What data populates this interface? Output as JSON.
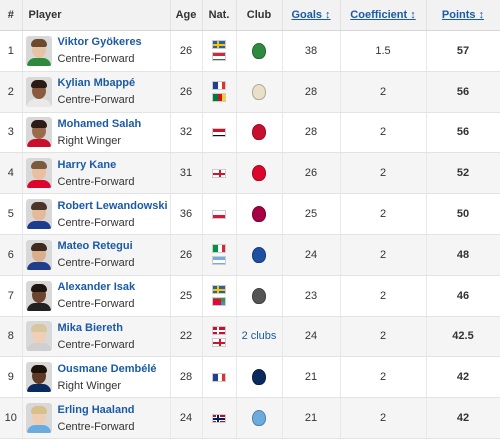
{
  "headers": {
    "rank": "#",
    "player": "Player",
    "age": "Age",
    "nat": "Nat.",
    "club": "Club",
    "goals": "Goals ↕",
    "coefficient": "Coefficient ↕",
    "points": "Points ↕"
  },
  "rows": [
    {
      "rank": "1",
      "name": "Viktor Gyökeres",
      "position": "Centre-Forward",
      "age": "26",
      "flags": [
        "sweden-flag",
        "hungary-flag"
      ],
      "club_icon": "sporting-crest",
      "club_color": "#2e8b3d",
      "clubs_text": "",
      "goals": "38",
      "coefficient": "1.5",
      "points": "57",
      "skin": "#e7c3a6",
      "hair": "#6b4a2e",
      "shirt": "#2e8b3d"
    },
    {
      "rank": "2",
      "name": "Kylian Mbappé",
      "position": "Centre-Forward",
      "age": "26",
      "flags": [
        "france-flag",
        "cameroon-flag"
      ],
      "club_icon": "real-madrid-crest",
      "club_color": "#e8e0c8",
      "clubs_text": "",
      "goals": "28",
      "coefficient": "2",
      "points": "56",
      "skin": "#8a5a3c",
      "hair": "#2a1c14",
      "shirt": "#e9e9e9"
    },
    {
      "rank": "3",
      "name": "Mohamed Salah",
      "position": "Right Winger",
      "age": "32",
      "flags": [
        "egypt-flag"
      ],
      "club_icon": "liverpool-crest",
      "club_color": "#c8102e",
      "clubs_text": "",
      "goals": "28",
      "coefficient": "2",
      "points": "56",
      "skin": "#9b6a4a",
      "hair": "#2b1d15",
      "shirt": "#c8102e"
    },
    {
      "rank": "4",
      "name": "Harry Kane",
      "position": "Centre-Forward",
      "age": "31",
      "flags": [
        "england-flag"
      ],
      "club_icon": "bayern-crest",
      "club_color": "#dc052d",
      "clubs_text": "",
      "goals": "26",
      "coefficient": "2",
      "points": "52",
      "skin": "#e8c0a0",
      "hair": "#7a5a3e",
      "shirt": "#dc052d"
    },
    {
      "rank": "5",
      "name": "Robert Lewandowski",
      "position": "Centre-Forward",
      "age": "36",
      "flags": [
        "poland-flag"
      ],
      "club_icon": "barcelona-crest",
      "club_color": "#a50044",
      "clubs_text": "",
      "goals": "25",
      "coefficient": "2",
      "points": "50",
      "skin": "#e3bb9c",
      "hair": "#4a3527",
      "shirt": "#1d3c8f"
    },
    {
      "rank": "6",
      "name": "Mateo Retegui",
      "position": "Centre-Forward",
      "age": "26",
      "flags": [
        "italy-flag",
        "argentina-flag"
      ],
      "club_icon": "atalanta-crest",
      "club_color": "#1e4fa0",
      "clubs_text": "",
      "goals": "24",
      "coefficient": "2",
      "points": "48",
      "skin": "#d9ae8c",
      "hair": "#3c2a1e",
      "shirt": "#1f3d8a"
    },
    {
      "rank": "7",
      "name": "Alexander Isak",
      "position": "Centre-Forward",
      "age": "25",
      "flags": [
        "sweden-flag",
        "eritrea-flag"
      ],
      "club_icon": "newcastle-crest",
      "club_color": "#555555",
      "clubs_text": "",
      "goals": "23",
      "coefficient": "2",
      "points": "46",
      "skin": "#6e4630",
      "hair": "#1f1510",
      "shirt": "#222222"
    },
    {
      "rank": "8",
      "name": "Mika Biereth",
      "position": "Centre-Forward",
      "age": "22",
      "flags": [
        "denmark-flag",
        "england-flag"
      ],
      "club_icon": "",
      "club_color": "",
      "clubs_text": "2 clubs",
      "goals": "24",
      "coefficient": "2",
      "points": "42.5",
      "skin": "#efcfb5",
      "hair": "#d8c79c",
      "shirt": "#cfcfcf"
    },
    {
      "rank": "9",
      "name": "Ousmane Dembélé",
      "position": "Right Winger",
      "age": "28",
      "flags": [
        "france-flag"
      ],
      "club_icon": "psg-crest",
      "club_color": "#0a2a5e",
      "clubs_text": "",
      "goals": "21",
      "coefficient": "2",
      "points": "42",
      "skin": "#5e3b27",
      "hair": "#1b120c",
      "shirt": "#0a2a5e"
    },
    {
      "rank": "10",
      "name": "Erling Haaland",
      "position": "Centre-Forward",
      "age": "24",
      "flags": [
        "norway-flag"
      ],
      "club_icon": "manchester-city-crest",
      "club_color": "#6cabdd",
      "clubs_text": "",
      "goals": "21",
      "coefficient": "2",
      "points": "42",
      "skin": "#efcdb2",
      "hair": "#d8c08a",
      "shirt": "#6cabdd"
    }
  ]
}
